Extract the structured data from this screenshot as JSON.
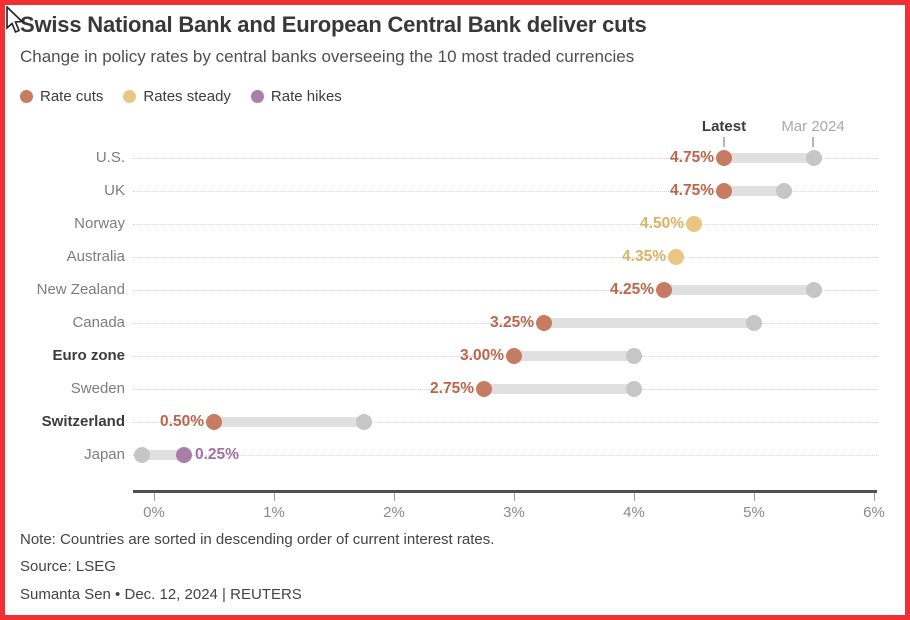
{
  "header": {
    "title": "Swiss National Bank and European Central Bank deliver cuts",
    "subtitle": "Change in policy rates by central banks overseeing the 10 most traded currencies"
  },
  "legend": [
    {
      "label": "Rate cuts",
      "color": "#c67c62"
    },
    {
      "label": "Rates steady",
      "color": "#e9c783"
    },
    {
      "label": "Rate hikes",
      "color": "#a97eab"
    }
  ],
  "column_headers": {
    "latest": "Latest",
    "previous": "Mar 2024"
  },
  "chart_data": {
    "type": "scatter",
    "variant": "dumbbell",
    "title": "Swiss National Bank and European Central Bank deliver cuts",
    "subtitle": "Change in policy rates by central banks overseeing the 10 most traded currencies",
    "unit": "percent",
    "xlim": [
      0,
      6
    ],
    "x_ticks": [
      "0%",
      "1%",
      "2%",
      "3%",
      "4%",
      "5%",
      "6%"
    ],
    "grid": "dotted-row-lines",
    "legend_position": "top-left",
    "categories": [
      "U.S.",
      "UK",
      "Norway",
      "Australia",
      "New Zealand",
      "Canada",
      "Euro zone",
      "Sweden",
      "Switzerland",
      "Japan"
    ],
    "series": [
      {
        "name": "Latest",
        "values": [
          4.75,
          4.75,
          4.5,
          4.35,
          4.25,
          3.25,
          3.0,
          2.75,
          0.5,
          0.25
        ]
      },
      {
        "name": "Mar 2024",
        "values": [
          5.5,
          5.25,
          4.5,
          4.35,
          5.5,
          5.0,
          4.0,
          4.0,
          1.75,
          -0.1
        ]
      }
    ],
    "point_labels": [
      "4.75%",
      "4.75%",
      "4.50%",
      "4.35%",
      "4.25%",
      "3.25%",
      "3.00%",
      "2.75%",
      "0.50%",
      "0.25%"
    ],
    "status": [
      "cut",
      "cut",
      "steady",
      "steady",
      "cut",
      "cut",
      "cut",
      "cut",
      "cut",
      "hike"
    ],
    "bold_categories": [
      "Euro zone",
      "Switzerland"
    ],
    "label_side": [
      "left",
      "left",
      "left",
      "left",
      "left",
      "left",
      "left",
      "left",
      "left",
      "right"
    ]
  },
  "colors": {
    "accent_border": "#f23033",
    "cut_dot": "#c67c62",
    "cut_text": "#bc654a",
    "steady_dot": "#e9c783",
    "steady_text": "#dcb267",
    "hike_dot": "#a97eab",
    "hike_text": "#a06fa3",
    "previous_dot": "#c6c6c6",
    "connector": "#e0e0e0"
  },
  "footer": {
    "note": "Note: Countries are sorted in descending order of current interest rates.",
    "source": "Source: LSEG",
    "byline": "Sumanta Sen • Dec. 12, 2024 | REUTERS"
  }
}
